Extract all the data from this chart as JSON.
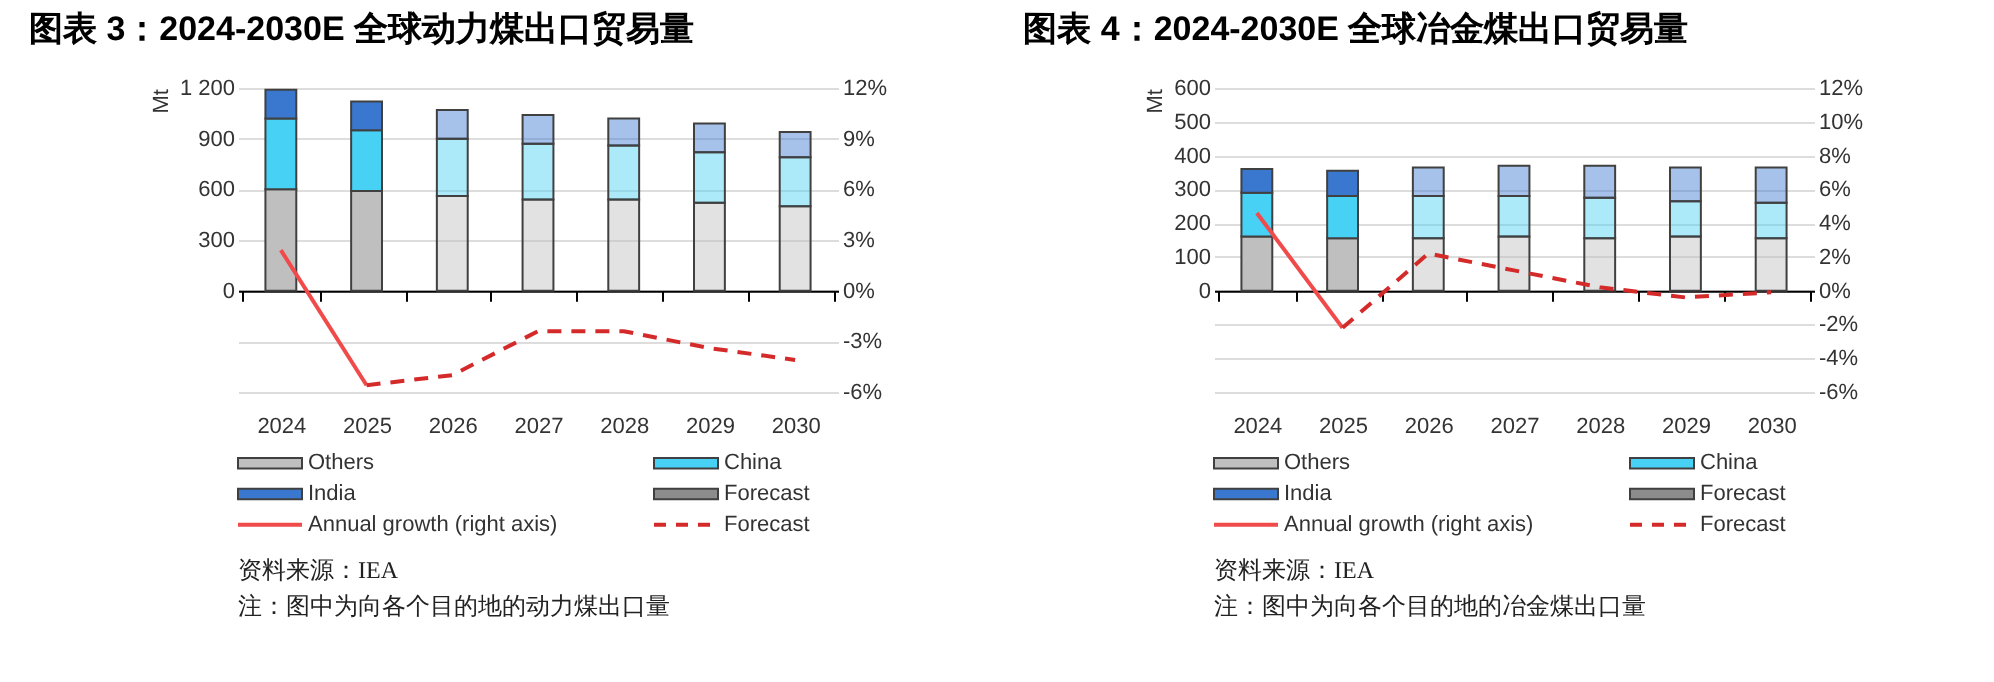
{
  "chart_data": [
    {
      "type": "bar",
      "title": "图表 3：2024-2030E 全球动力煤出口贸易量",
      "ylabel": "Mt",
      "categories": [
        "2024",
        "2025",
        "2026",
        "2027",
        "2028",
        "2029",
        "2030"
      ],
      "stacked": true,
      "series": [
        {
          "name": "Others",
          "type": "bar",
          "color": "#bfbfbf",
          "values": [
            600,
            590,
            560,
            540,
            540,
            520,
            500
          ]
        },
        {
          "name": "China",
          "type": "bar",
          "color": "#47d1f5",
          "values": [
            420,
            360,
            340,
            330,
            320,
            300,
            290
          ]
        },
        {
          "name": "India",
          "type": "bar",
          "color": "#3a78d0",
          "values": [
            170,
            170,
            170,
            170,
            160,
            170,
            150
          ]
        },
        {
          "name": "Forecast",
          "type": "bar",
          "color": "#8c8c8c",
          "values": [
            null,
            null,
            null,
            null,
            null,
            null,
            null
          ]
        },
        {
          "name": "Annual growth (right axis)",
          "type": "line",
          "axis": "y2",
          "line_style": "solid",
          "color": "#f04a4a",
          "values": [
            2.4,
            -5.6,
            null,
            null,
            null,
            null,
            null
          ]
        },
        {
          "name": "Forecast",
          "type": "line",
          "axis": "y2",
          "line_style": "dashed",
          "color": "#d42a2a",
          "values": [
            null,
            -5.6,
            -5.0,
            -2.4,
            -2.4,
            -3.4,
            -4.1
          ]
        }
      ],
      "ylim": [
        -600,
        1200
      ],
      "yticks": [
        0,
        300,
        600,
        900,
        {
          "value": 1200,
          "label": "1 200"
        }
      ],
      "y2lim": [
        -6,
        12
      ],
      "y2ticks": [
        {
          "value": -6,
          "label": "-6%"
        },
        {
          "value": -3,
          "label": "-3%"
        },
        {
          "value": 0,
          "label": "0%"
        },
        {
          "value": 3,
          "label": "3%"
        },
        {
          "value": 6,
          "label": "6%"
        },
        {
          "value": 9,
          "label": "9%"
        },
        {
          "value": 12,
          "label": "12%"
        }
      ],
      "grid": "y2",
      "legend": "bottom",
      "annotations": [
        "资料来源：IEA",
        "注：图中为向各个目的地的动力煤出口量"
      ]
    },
    {
      "type": "bar",
      "title": "图表 4：2024-2030E 全球冶金煤出口贸易量",
      "ylabel": "Mt",
      "categories": [
        "2024",
        "2025",
        "2026",
        "2027",
        "2028",
        "2029",
        "2030"
      ],
      "stacked": true,
      "series": [
        {
          "name": "Others",
          "type": "bar",
          "color": "#bfbfbf",
          "values": [
            160,
            155,
            155,
            160,
            155,
            160,
            155
          ]
        },
        {
          "name": "China",
          "type": "bar",
          "color": "#47d1f5",
          "values": [
            130,
            125,
            125,
            120,
            120,
            105,
            105
          ]
        },
        {
          "name": "India",
          "type": "bar",
          "color": "#3a78d0",
          "values": [
            70,
            75,
            85,
            90,
            95,
            100,
            105
          ]
        },
        {
          "name": "Forecast",
          "type": "bar",
          "color": "#8c8c8c",
          "values": [
            null,
            null,
            null,
            null,
            null,
            null,
            null
          ]
        },
        {
          "name": "Annual growth (right axis)",
          "type": "line",
          "axis": "y2",
          "line_style": "solid",
          "color": "#f04a4a",
          "values": [
            4.6,
            -2.2,
            null,
            null,
            null,
            null,
            null
          ]
        },
        {
          "name": "Forecast",
          "type": "line",
          "axis": "y2",
          "line_style": "dashed",
          "color": "#d42a2a",
          "values": [
            null,
            -2.2,
            2.2,
            1.2,
            0.2,
            -0.4,
            -0.1
          ]
        }
      ],
      "ylim": [
        -300,
        600
      ],
      "yticks": [
        0,
        100,
        200,
        300,
        400,
        500,
        600
      ],
      "y2lim": [
        -6,
        12
      ],
      "y2ticks": [
        {
          "value": -6,
          "label": "-6%"
        },
        {
          "value": -4,
          "label": "-4%"
        },
        {
          "value": -2,
          "label": "-2%"
        },
        {
          "value": 0,
          "label": "0%"
        },
        {
          "value": 2,
          "label": "2%"
        },
        {
          "value": 4,
          "label": "4%"
        },
        {
          "value": 6,
          "label": "6%"
        },
        {
          "value": 8,
          "label": "8%"
        },
        {
          "value": 10,
          "label": "10%"
        },
        {
          "value": 12,
          "label": "12%"
        }
      ],
      "grid": "y2",
      "legend": "bottom",
      "annotations": [
        "资料来源：IEA",
        "注：图中为向各个目的地的冶金煤出口量"
      ]
    }
  ]
}
